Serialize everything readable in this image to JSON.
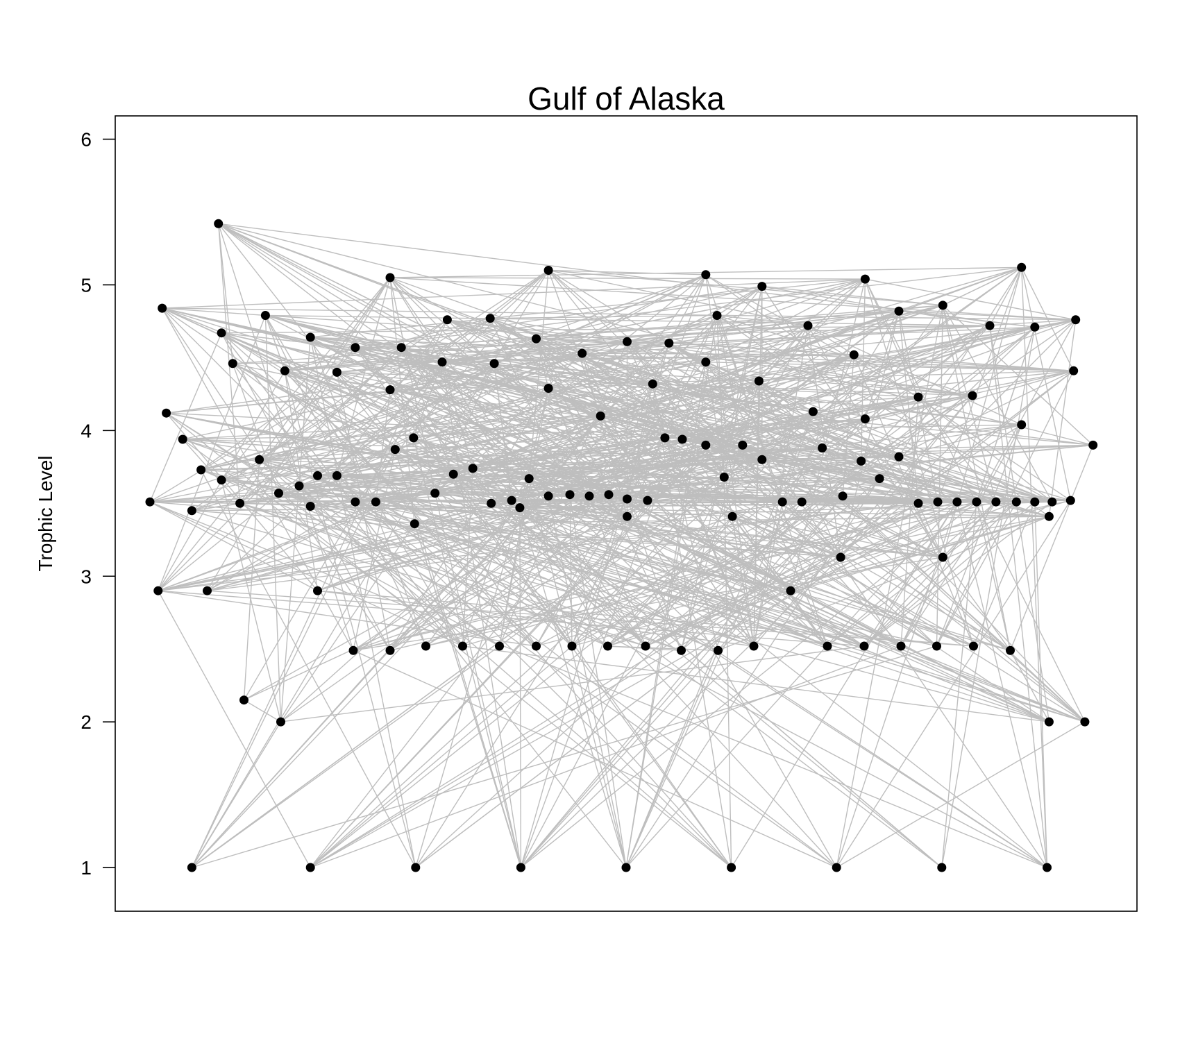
{
  "chart_data": {
    "type": "scatter",
    "title": "Gulf of Alaska",
    "xlabel": "",
    "ylabel": "Trophic Level",
    "ylim": [
      0.7,
      6.16
    ],
    "xlim": [
      0,
      1
    ],
    "yticks": [
      1,
      2,
      3,
      4,
      5,
      6
    ],
    "x_axis_shown": false,
    "grid": false,
    "legend": "none",
    "colors": {
      "nodes": "#000000",
      "edges": "#bebebe",
      "frame": "#000000"
    },
    "series": [
      {
        "values_note_x": "horizontal position (normalized 0-1, arbitrary layout axis)",
        "nodes": [
          {
            "x": 0.034,
            "y": 3.51
          },
          {
            "x": 0.046,
            "y": 4.84
          },
          {
            "x": 0.05,
            "y": 4.12
          },
          {
            "x": 0.066,
            "y": 3.94
          },
          {
            "x": 0.042,
            "y": 2.9
          },
          {
            "x": 0.075,
            "y": 3.45
          },
          {
            "x": 0.084,
            "y": 3.73
          },
          {
            "x": 0.09,
            "y": 2.9
          },
          {
            "x": 0.101,
            "y": 5.42
          },
          {
            "x": 0.104,
            "y": 4.67
          },
          {
            "x": 0.104,
            "y": 3.66
          },
          {
            "x": 0.115,
            "y": 4.46
          },
          {
            "x": 0.122,
            "y": 3.5
          },
          {
            "x": 0.126,
            "y": 2.15
          },
          {
            "x": 0.141,
            "y": 3.8
          },
          {
            "x": 0.147,
            "y": 4.79
          },
          {
            "x": 0.16,
            "y": 3.57
          },
          {
            "x": 0.162,
            "y": 2.0
          },
          {
            "x": 0.166,
            "y": 4.41
          },
          {
            "x": 0.18,
            "y": 3.62
          },
          {
            "x": 0.191,
            "y": 4.64
          },
          {
            "x": 0.191,
            "y": 3.48
          },
          {
            "x": 0.198,
            "y": 3.69
          },
          {
            "x": 0.198,
            "y": 2.9
          },
          {
            "x": 0.217,
            "y": 4.4
          },
          {
            "x": 0.217,
            "y": 3.69
          },
          {
            "x": 0.233,
            "y": 2.49
          },
          {
            "x": 0.235,
            "y": 4.57
          },
          {
            "x": 0.235,
            "y": 3.51
          },
          {
            "x": 0.255,
            "y": 3.51
          },
          {
            "x": 0.269,
            "y": 5.05
          },
          {
            "x": 0.269,
            "y": 4.28
          },
          {
            "x": 0.269,
            "y": 2.49
          },
          {
            "x": 0.274,
            "y": 3.87
          },
          {
            "x": 0.28,
            "y": 4.57
          },
          {
            "x": 0.292,
            "y": 3.95
          },
          {
            "x": 0.293,
            "y": 3.36
          },
          {
            "x": 0.304,
            "y": 2.52
          },
          {
            "x": 0.313,
            "y": 3.57
          },
          {
            "x": 0.32,
            "y": 4.47
          },
          {
            "x": 0.325,
            "y": 4.76
          },
          {
            "x": 0.331,
            "y": 3.7
          },
          {
            "x": 0.34,
            "y": 2.52
          },
          {
            "x": 0.35,
            "y": 3.74
          },
          {
            "x": 0.367,
            "y": 4.77
          },
          {
            "x": 0.368,
            "y": 3.5
          },
          {
            "x": 0.371,
            "y": 4.46
          },
          {
            "x": 0.376,
            "y": 2.52
          },
          {
            "x": 0.388,
            "y": 3.52
          },
          {
            "x": 0.396,
            "y": 3.47
          },
          {
            "x": 0.405,
            "y": 3.67
          },
          {
            "x": 0.412,
            "y": 4.63
          },
          {
            "x": 0.412,
            "y": 2.52
          },
          {
            "x": 0.424,
            "y": 5.1
          },
          {
            "x": 0.424,
            "y": 4.29
          },
          {
            "x": 0.424,
            "y": 3.55
          },
          {
            "x": 0.447,
            "y": 2.52
          },
          {
            "x": 0.445,
            "y": 3.56
          },
          {
            "x": 0.457,
            "y": 4.53
          },
          {
            "x": 0.464,
            "y": 3.55
          },
          {
            "x": 0.475,
            "y": 4.1
          },
          {
            "x": 0.482,
            "y": 2.52
          },
          {
            "x": 0.483,
            "y": 3.56
          },
          {
            "x": 0.501,
            "y": 4.61
          },
          {
            "x": 0.501,
            "y": 3.53
          },
          {
            "x": 0.501,
            "y": 3.41
          },
          {
            "x": 0.519,
            "y": 2.52
          },
          {
            "x": 0.521,
            "y": 3.52
          },
          {
            "x": 0.526,
            "y": 4.32
          },
          {
            "x": 0.538,
            "y": 3.95
          },
          {
            "x": 0.542,
            "y": 4.6
          },
          {
            "x": 0.554,
            "y": 2.49
          },
          {
            "x": 0.555,
            "y": 3.94
          },
          {
            "x": 0.578,
            "y": 5.07
          },
          {
            "x": 0.578,
            "y": 4.47
          },
          {
            "x": 0.578,
            "y": 3.9
          },
          {
            "x": 0.589,
            "y": 4.79
          },
          {
            "x": 0.59,
            "y": 2.49
          },
          {
            "x": 0.596,
            "y": 3.68
          },
          {
            "x": 0.604,
            "y": 3.41
          },
          {
            "x": 0.614,
            "y": 3.9
          },
          {
            "x": 0.625,
            "y": 2.52
          },
          {
            "x": 0.63,
            "y": 4.34
          },
          {
            "x": 0.633,
            "y": 4.99
          },
          {
            "x": 0.633,
            "y": 3.8
          },
          {
            "x": 0.653,
            "y": 3.51
          },
          {
            "x": 0.661,
            "y": 2.9
          },
          {
            "x": 0.672,
            "y": 3.51
          },
          {
            "x": 0.678,
            "y": 4.72
          },
          {
            "x": 0.683,
            "y": 4.13
          },
          {
            "x": 0.692,
            "y": 3.88
          },
          {
            "x": 0.697,
            "y": 2.52
          },
          {
            "x": 0.71,
            "y": 3.13
          },
          {
            "x": 0.712,
            "y": 3.55
          },
          {
            "x": 0.723,
            "y": 4.52
          },
          {
            "x": 0.73,
            "y": 3.79
          },
          {
            "x": 0.733,
            "y": 2.52
          },
          {
            "x": 0.734,
            "y": 5.04
          },
          {
            "x": 0.734,
            "y": 4.08
          },
          {
            "x": 0.748,
            "y": 3.67
          },
          {
            "x": 0.769,
            "y": 2.52
          },
          {
            "x": 0.767,
            "y": 4.82
          },
          {
            "x": 0.767,
            "y": 3.82
          },
          {
            "x": 0.786,
            "y": 4.23
          },
          {
            "x": 0.786,
            "y": 3.5
          },
          {
            "x": 0.804,
            "y": 2.52
          },
          {
            "x": 0.805,
            "y": 3.51
          },
          {
            "x": 0.81,
            "y": 4.86
          },
          {
            "x": 0.81,
            "y": 3.13
          },
          {
            "x": 0.824,
            "y": 3.51
          },
          {
            "x": 0.839,
            "y": 4.24
          },
          {
            "x": 0.84,
            "y": 2.52
          },
          {
            "x": 0.843,
            "y": 3.51
          },
          {
            "x": 0.856,
            "y": 4.72
          },
          {
            "x": 0.862,
            "y": 3.51
          },
          {
            "x": 0.876,
            "y": 2.49
          },
          {
            "x": 0.882,
            "y": 3.51
          },
          {
            "x": 0.887,
            "y": 5.12
          },
          {
            "x": 0.887,
            "y": 4.04
          },
          {
            "x": 0.9,
            "y": 4.71
          },
          {
            "x": 0.9,
            "y": 3.51
          },
          {
            "x": 0.914,
            "y": 3.41
          },
          {
            "x": 0.914,
            "y": 2.0
          },
          {
            "x": 0.917,
            "y": 3.51
          },
          {
            "x": 0.935,
            "y": 3.52
          },
          {
            "x": 0.938,
            "y": 4.41
          },
          {
            "x": 0.94,
            "y": 4.76
          },
          {
            "x": 0.949,
            "y": 2.0
          },
          {
            "x": 0.957,
            "y": 3.9
          },
          {
            "x": 0.075,
            "y": 1.0
          },
          {
            "x": 0.191,
            "y": 1.0
          },
          {
            "x": 0.294,
            "y": 1.0
          },
          {
            "x": 0.397,
            "y": 1.0
          },
          {
            "x": 0.5,
            "y": 1.0
          },
          {
            "x": 0.603,
            "y": 1.0
          },
          {
            "x": 0.706,
            "y": 1.0
          },
          {
            "x": 0.809,
            "y": 1.0
          },
          {
            "x": 0.912,
            "y": 1.0
          }
        ]
      }
    ]
  }
}
